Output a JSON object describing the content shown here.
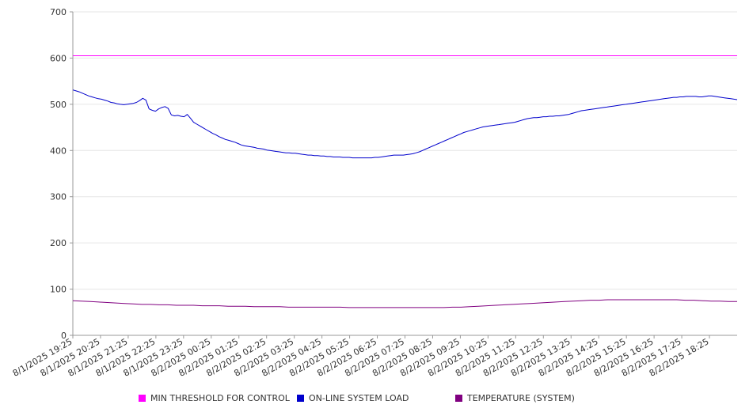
{
  "chart_data": {
    "type": "line",
    "x_start": "8/1/2025 19:25",
    "x_step_minutes": 5,
    "x_tick_labels": [
      "8/1/2025 19:25",
      "8/1/2025 20:25",
      "8/1/2025 21:25",
      "8/1/2025 22:25",
      "8/1/2025 23:25",
      "8/2/2025 00:25",
      "8/2/2025 01:25",
      "8/2/2025 02:25",
      "8/2/2025 03:25",
      "8/2/2025 04:25",
      "8/2/2025 05:25",
      "8/2/2025 06:25",
      "8/2/2025 07:25",
      "8/2/2025 08:25",
      "8/2/2025 09:25",
      "8/2/2025 10:25",
      "8/2/2025 11:25",
      "8/2/2025 12:25",
      "8/2/2025 13:25",
      "8/2/2025 14:25",
      "8/2/2025 15:25",
      "8/2/2025 16:25",
      "8/2/2025 17:25",
      "8/2/2025 18:25"
    ],
    "y_ticks": [
      "0",
      "100",
      "200",
      "300",
      "400",
      "500",
      "600",
      "700"
    ],
    "ylim": [
      0,
      700
    ],
    "grid": true,
    "legend_position": "bottom",
    "series": [
      {
        "name": "MIN THRESHOLD FOR CONTROL",
        "color": "#ff00ff",
        "values": [
          605,
          605
        ]
      },
      {
        "name": "ON-LINE SYSTEM LOAD",
        "color": "#0000cc",
        "values": [
          531,
          529,
          527,
          524,
          521,
          518,
          516,
          514,
          512,
          511,
          509,
          507,
          504,
          503,
          501,
          500,
          499,
          500,
          501,
          502,
          504,
          508,
          513,
          509,
          490,
          487,
          485,
          490,
          493,
          495,
          491,
          477,
          475,
          476,
          474,
          473,
          478,
          470,
          461,
          457,
          453,
          449,
          445,
          441,
          437,
          434,
          430,
          427,
          424,
          422,
          420,
          418,
          415,
          412,
          410,
          409,
          408,
          407,
          405,
          404,
          403,
          401,
          400,
          399,
          398,
          397,
          396,
          395,
          395,
          394,
          394,
          393,
          392,
          391,
          390,
          390,
          389,
          389,
          388,
          388,
          387,
          387,
          386,
          386,
          386,
          385,
          385,
          385,
          384,
          384,
          384,
          384,
          384,
          384,
          384,
          385,
          385,
          386,
          387,
          388,
          389,
          390,
          390,
          390,
          390,
          391,
          392,
          393,
          395,
          397,
          400,
          403,
          406,
          409,
          412,
          415,
          418,
          421,
          424,
          427,
          430,
          433,
          436,
          439,
          441,
          443,
          445,
          447,
          449,
          451,
          452,
          453,
          454,
          455,
          456,
          457,
          458,
          459,
          460,
          461,
          463,
          465,
          467,
          469,
          470,
          471,
          471,
          472,
          473,
          473,
          474,
          474,
          475,
          475,
          476,
          477,
          478,
          480,
          482,
          484,
          486,
          487,
          488,
          489,
          490,
          491,
          492,
          493,
          494,
          495,
          496,
          497,
          498,
          499,
          500,
          501,
          502,
          503,
          504,
          505,
          506,
          507,
          508,
          509,
          510,
          511,
          512,
          513,
          514,
          515,
          515,
          516,
          516,
          517,
          517,
          517,
          517,
          516,
          516,
          517,
          518,
          518,
          517,
          516,
          515,
          514,
          513,
          512,
          511,
          510
        ]
      },
      {
        "name": "TEMPERATURE (SYSTEM)",
        "color": "#800080",
        "values": [
          75,
          74,
          73,
          72,
          71,
          70,
          69,
          68,
          67,
          67,
          66,
          66,
          65,
          65,
          65,
          64,
          64,
          64,
          63,
          63,
          63,
          62,
          62,
          62,
          62,
          61,
          61,
          61,
          61,
          61,
          61,
          61,
          60,
          60,
          60,
          60,
          60,
          60,
          60,
          60,
          60,
          60,
          60,
          60,
          61,
          61,
          62,
          63,
          64,
          65,
          66,
          67,
          68,
          69,
          70,
          71,
          72,
          73,
          74,
          75,
          76,
          76,
          77,
          77,
          77,
          77,
          77,
          77,
          77,
          77,
          77,
          76,
          76,
          75,
          74,
          74,
          73,
          73
        ]
      }
    ]
  }
}
